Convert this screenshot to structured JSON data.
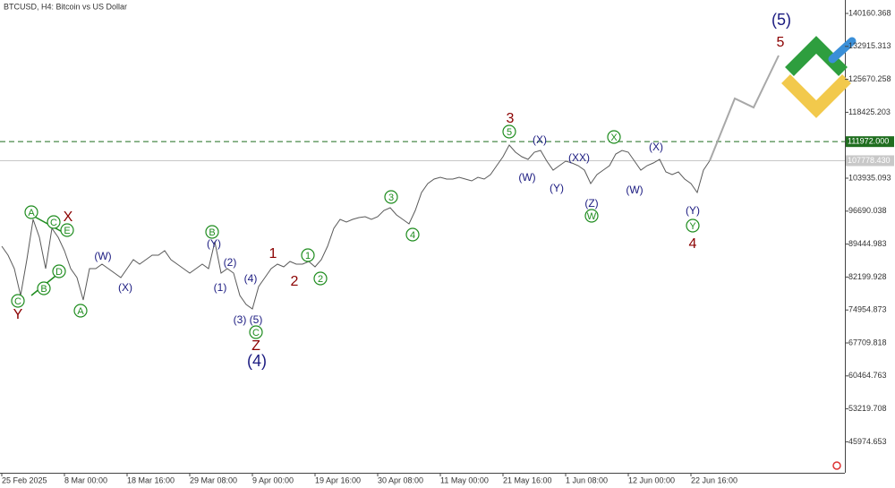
{
  "chart_data": {
    "type": "line",
    "title": "BTCUSD, H4:  Bitcoin vs US Dollar",
    "categories": [
      "25 Feb 2025",
      null,
      null,
      null,
      null,
      null,
      null,
      null,
      null,
      null,
      "8 Mar 00:00",
      null,
      null,
      null,
      null,
      null,
      null,
      null,
      null,
      null,
      "18 Mar 16:00",
      null,
      null,
      null,
      null,
      null,
      null,
      null,
      null,
      null,
      "29 Mar 08:00",
      null,
      null,
      null,
      null,
      null,
      null,
      null,
      null,
      null,
      "9 Apr 00:00",
      null,
      null,
      null,
      null,
      null,
      null,
      null,
      null,
      null,
      "19 Apr 16:00",
      null,
      null,
      null,
      null,
      null,
      null,
      null,
      null,
      null,
      "30 Apr 08:00",
      null,
      null,
      null,
      null,
      null,
      null,
      null,
      null,
      null,
      "11 May 00:00",
      null,
      null,
      null,
      null,
      null,
      null,
      null,
      null,
      null,
      "21 May 16:00",
      null,
      null,
      null,
      null,
      null,
      null,
      null,
      null,
      null,
      "1 Jun 08:00",
      null,
      null,
      null,
      null,
      null,
      null,
      null,
      null,
      null,
      "12 Jun 00:00",
      null,
      null,
      null,
      null,
      null,
      null,
      null,
      null,
      null,
      "22 Jun 16:00",
      null,
      null,
      null,
      null,
      null,
      null,
      null,
      null,
      null,
      null,
      null,
      null,
      null,
      null
    ],
    "series": [
      {
        "color": "#5a5a5a",
        "values": [
          88971,
          87002,
          84049,
          78143,
          86018,
          94878,
          90940,
          84049,
          92909,
          90940,
          87987,
          84049,
          82080,
          77158,
          84049,
          84049,
          85034,
          84049,
          83065,
          82080,
          84049,
          86018,
          85034,
          86018,
          87002,
          87002,
          87987,
          86018,
          85034,
          84049,
          83065,
          84049,
          85034,
          84049,
          89956,
          83065,
          84049,
          83065,
          78143,
          76174,
          75190,
          80112,
          82080,
          84049,
          85034,
          84443,
          85624,
          85034,
          85034,
          85624,
          84443,
          86018,
          88971,
          92909,
          94878,
          94287,
          94878,
          95270,
          95468,
          94878,
          95468,
          96846,
          97437,
          95862,
          94878,
          93893,
          96846,
          100784,
          102753,
          103738,
          104131,
          103738,
          103738,
          104131,
          103738,
          103344,
          104131,
          103738,
          104722,
          106690,
          108659,
          111218,
          109644,
          108659,
          108069,
          109644,
          110037,
          107675,
          105706,
          106690,
          107675,
          107281,
          106690,
          105706,
          102753,
          104722,
          105706,
          106690,
          109250,
          110037,
          109644,
          107675,
          105706,
          106690,
          107281,
          108069,
          105312,
          104722,
          105312,
          103738,
          102753,
          100784,
          105706,
          107778.43,
          null,
          null,
          null,
          null,
          null,
          null,
          null,
          null,
          null,
          null,
          null
        ]
      },
      {
        "color": "#a8a8a8",
        "values": [
          null,
          null,
          null,
          null,
          null,
          null,
          null,
          null,
          null,
          null,
          null,
          null,
          null,
          null,
          null,
          null,
          null,
          null,
          null,
          null,
          null,
          null,
          null,
          null,
          null,
          null,
          null,
          null,
          null,
          null,
          null,
          null,
          null,
          null,
          null,
          null,
          null,
          null,
          null,
          null,
          null,
          null,
          null,
          null,
          null,
          null,
          null,
          null,
          null,
          null,
          null,
          null,
          null,
          null,
          null,
          null,
          null,
          null,
          null,
          null,
          null,
          null,
          null,
          null,
          null,
          null,
          null,
          null,
          null,
          null,
          null,
          null,
          null,
          null,
          null,
          null,
          null,
          null,
          null,
          null,
          null,
          null,
          null,
          null,
          null,
          null,
          null,
          null,
          null,
          null,
          null,
          null,
          null,
          null,
          null,
          null,
          null,
          null,
          null,
          null,
          null,
          null,
          null,
          null,
          null,
          null,
          null,
          null,
          null,
          null,
          null,
          null,
          null,
          107778.43,
          111198,
          114617,
          118037,
          121456,
          120800,
          120143,
          119487,
          122342,
          125197,
          128052,
          130907
        ]
      }
    ],
    "ylim": [
      39164,
      143113
    ],
    "yticks": [
      140160.368,
      132915.313,
      125670.258,
      118425.203,
      103935.093,
      96690.038,
      89444.983,
      82199.928,
      74954.873,
      67709.818,
      60464.763,
      53219.708,
      45974.653
    ],
    "grid": false,
    "hlines": [
      {
        "value": {
          "value": 111972,
          "label": "111972.000"
        },
        "color": "#1f6e1f",
        "dashed": true
      },
      {
        "value": {
          "value": 107778.43,
          "label": "107778.430"
        },
        "color": "#c8c8c8",
        "dashed": false
      }
    ],
    "annotations": [
      {
        "text": "C",
        "color": "#1e8c1e",
        "circled": true
      },
      {
        "text": "Y",
        "color": "#8b0000",
        "circled": false
      },
      {
        "text": "A",
        "color": "#1e8c1e",
        "circled": true
      },
      {
        "text": "C",
        "color": "#1e8c1e",
        "circled": true
      },
      {
        "text": "X",
        "color": "#8b0000",
        "circled": false
      },
      {
        "text": "E",
        "color": "#1e8c1e",
        "circled": true
      },
      {
        "text": "B",
        "color": "#1e8c1e",
        "circled": true
      },
      {
        "text": "D",
        "color": "#1e8c1e",
        "circled": true
      },
      {
        "text": "A",
        "color": "#1e8c1e",
        "circled": true
      },
      {
        "text": "(W)",
        "color": "#1a1a80",
        "circled": false
      },
      {
        "text": "(X)",
        "color": "#1a1a80",
        "circled": false
      },
      {
        "text": "B",
        "color": "#1e8c1e",
        "circled": true
      },
      {
        "text": "(Y)",
        "color": "#1a1a80",
        "circled": false
      },
      {
        "text": "(2)",
        "color": "#1a1a80",
        "circled": false
      },
      {
        "text": "(1)",
        "color": "#1a1a80",
        "circled": false
      },
      {
        "text": "(4)",
        "color": "#1a1a80",
        "circled": false
      },
      {
        "text": "(3)",
        "color": "#1a1a80",
        "circled": false
      },
      {
        "text": "(5)",
        "color": "#1a1a80",
        "circled": false
      },
      {
        "text": "C",
        "color": "#1e8c1e",
        "circled": true
      },
      {
        "text": "Z",
        "color": "#8b0000",
        "circled": false
      },
      {
        "text": "(4)",
        "color": "#1a1a80",
        "circled": false
      },
      {
        "text": "1",
        "color": "#8b0000",
        "circled": false
      },
      {
        "text": "1",
        "color": "#1e8c1e",
        "circled": true
      },
      {
        "text": "2",
        "color": "#8b0000",
        "circled": false
      },
      {
        "text": "2",
        "color": "#1e8c1e",
        "circled": true
      },
      {
        "text": "3",
        "color": "#1e8c1e",
        "circled": true
      },
      {
        "text": "4",
        "color": "#1e8c1e",
        "circled": true
      },
      {
        "text": "3",
        "color": "#8b0000",
        "circled": false
      },
      {
        "text": "5",
        "color": "#1e8c1e",
        "circled": true
      },
      {
        "text": "(X)",
        "color": "#1a1a80",
        "circled": false
      },
      {
        "text": "(W)",
        "color": "#1a1a80",
        "circled": false
      },
      {
        "text": "(Y)",
        "color": "#1a1a80",
        "circled": false
      },
      {
        "text": "(XX)",
        "color": "#1a1a80",
        "circled": false
      },
      {
        "text": "(Z)",
        "color": "#1a1a80",
        "circled": false
      },
      {
        "text": "W",
        "color": "#1e8c1e",
        "circled": true
      },
      {
        "text": "X",
        "color": "#1e8c1e",
        "circled": true
      },
      {
        "text": "(W)",
        "color": "#1a1a80",
        "circled": false
      },
      {
        "text": "(X)",
        "color": "#1a1a80",
        "circled": false
      },
      {
        "text": "(Y)",
        "color": "#1a1a80",
        "circled": false
      },
      {
        "text": "Y",
        "color": "#1e8c1e",
        "circled": true
      },
      {
        "text": "4",
        "color": "#8b0000",
        "circled": false
      },
      {
        "text": "(5)",
        "color": "#1a1a80",
        "circled": false
      },
      {
        "text": "5",
        "color": "#8b0000",
        "circled": false
      }
    ]
  }
}
